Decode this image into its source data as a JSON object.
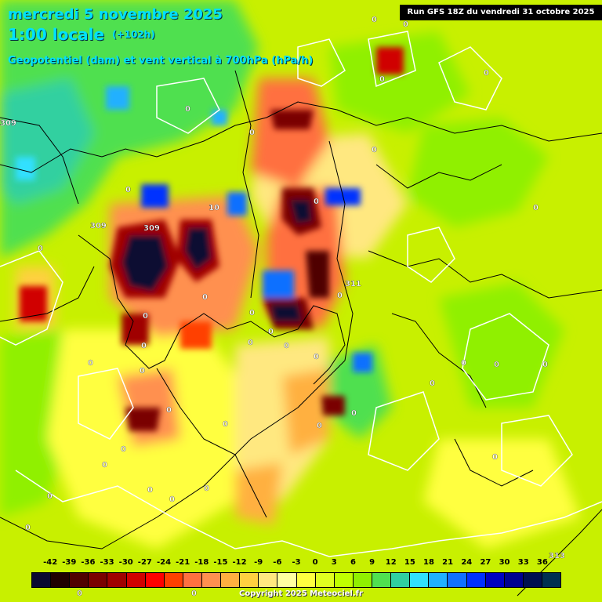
{
  "header": {
    "date_line": "mercredi 5 novembre 2025",
    "time_line": "1:00 locale",
    "lead_time": "(+102h)",
    "variable_line": "Geopotentiel (dam) et vent vertical à 700hPa (hPa/h)",
    "run_info": "Run GFS 18Z du vendredi 31 octobre 2025"
  },
  "legend": {
    "ticks": [
      "-42",
      "-39",
      "-36",
      "-33",
      "-30",
      "-27",
      "-24",
      "-21",
      "-18",
      "-15",
      "-12",
      "-9",
      "-6",
      "-3",
      "0",
      "3",
      "6",
      "9",
      "12",
      "15",
      "18",
      "21",
      "24",
      "27",
      "30",
      "33",
      "36"
    ],
    "colors": [
      "#0a0a30",
      "#200000",
      "#500000",
      "#7a0000",
      "#a00000",
      "#d00000",
      "#ff0000",
      "#ff4000",
      "#ff7040",
      "#ff9050",
      "#ffb040",
      "#ffd040",
      "#ffe880",
      "#ffffa0",
      "#ffff40",
      "#e0ff20",
      "#c0ff00",
      "#90f000",
      "#50e050",
      "#30d0a0",
      "#30e0ff",
      "#20b0ff",
      "#1070ff",
      "#0030ff",
      "#0000c0",
      "#000090",
      "#001050",
      "#003050"
    ]
  },
  "map_labels": [
    {
      "text": "309"
    },
    {
      "text": "309"
    },
    {
      "text": "309"
    },
    {
      "text": "311"
    },
    {
      "text": "313"
    },
    {
      "text": "0"
    },
    {
      "text": "0"
    },
    {
      "text": "0"
    },
    {
      "text": "0"
    },
    {
      "text": "0"
    },
    {
      "text": "0"
    },
    {
      "text": "0"
    },
    {
      "text": "0"
    },
    {
      "text": "0"
    },
    {
      "text": "0"
    },
    {
      "text": "0"
    },
    {
      "text": "0"
    },
    {
      "text": "0"
    },
    {
      "text": "0"
    },
    {
      "text": "0"
    },
    {
      "text": "0"
    },
    {
      "text": "0"
    },
    {
      "text": "0"
    },
    {
      "text": "0"
    },
    {
      "text": "0"
    },
    {
      "text": "0"
    },
    {
      "text": "0"
    },
    {
      "text": "0"
    },
    {
      "text": "0"
    },
    {
      "text": "0"
    },
    {
      "text": "0"
    },
    {
      "text": "0"
    },
    {
      "text": "0"
    },
    {
      "text": "0"
    },
    {
      "text": "0"
    },
    {
      "text": "0"
    },
    {
      "text": "0"
    },
    {
      "text": "0"
    },
    {
      "text": "0"
    },
    {
      "text": "0"
    },
    {
      "text": "0"
    },
    {
      "text": "0"
    },
    {
      "text": "0"
    },
    {
      "text": "0"
    },
    {
      "text": "0"
    },
    {
      "text": "10"
    }
  ],
  "copyright": "Copyright 2025 Meteociel.fr"
}
